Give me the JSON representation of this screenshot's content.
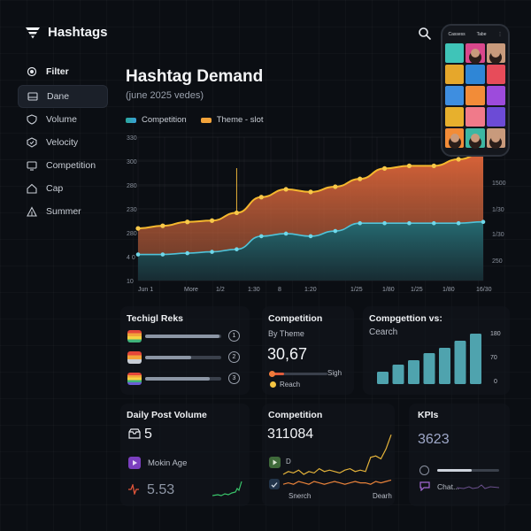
{
  "app": {
    "title": "Hashtags"
  },
  "sidebar": {
    "items": [
      {
        "label": "Filter",
        "icon": "filter-circle-icon",
        "head": true
      },
      {
        "label": "Dane",
        "icon": "window-icon",
        "active": true
      },
      {
        "label": "Volume",
        "icon": "shield-icon"
      },
      {
        "label": "Velocity",
        "icon": "badge-icon"
      },
      {
        "label": "Competition",
        "icon": "monitor-icon"
      },
      {
        "label": "Cap",
        "icon": "home-icon"
      },
      {
        "label": "Summer",
        "icon": "tent-icon"
      }
    ]
  },
  "main": {
    "title": "Hashtag Demand",
    "subtitle": "(june 2025 vedes)",
    "legend": [
      {
        "label": "Competition",
        "color": "#2aa79b"
      },
      {
        "label": "Theme - slot",
        "color": "#f2a33a"
      }
    ]
  },
  "chart_data": {
    "type": "area",
    "x_labels": [
      "Jun 1",
      "More",
      "1/2",
      "1:30",
      "8",
      "1:20",
      "1/25",
      "1/80",
      "1/25",
      "1/80",
      "16/30"
    ],
    "y_labels_left": [
      "330",
      "300",
      "280",
      "230",
      "280",
      "4 0",
      "10"
    ],
    "y_labels_right": [
      "1500",
      "1/30",
      "1/30",
      "250"
    ],
    "series": [
      {
        "name": "Theme - slot",
        "color": "#f5b82e",
        "values": [
          40,
          42,
          45,
          46,
          52,
          64,
          70,
          68,
          72,
          78,
          86,
          88,
          88,
          93,
          98
        ]
      },
      {
        "name": "Competition",
        "color": "#4fc3d9",
        "values": [
          20,
          20,
          21,
          22,
          24,
          34,
          36,
          34,
          38,
          44,
          44,
          44,
          44,
          44,
          45
        ]
      }
    ],
    "spike_index": 4
  },
  "phone": {
    "tabs": [
      "Cassess",
      "Tabe",
      "⋮"
    ],
    "tiles": [
      "#3fc4b8",
      "#d9478c",
      "#c89a7c",
      "#e6a72b",
      "#2f86d6",
      "#e74c5a",
      "#3e8ee0",
      "#f28c38",
      "#9d4bdc",
      "#e7b02d",
      "#f07a8a",
      "#6c4bd6",
      "#f28c38",
      "#3cb6a3",
      "#c89a7c"
    ]
  },
  "cards": {
    "rank": {
      "title": "Techigl Reks",
      "rows": [
        {
          "rank": "1",
          "fill": 0.98
        },
        {
          "rank": "2",
          "fill": 0.6
        },
        {
          "rank": "3",
          "fill": 0.85
        }
      ]
    },
    "competition_theme": {
      "title": "Competition",
      "subtitle": "By Theme",
      "value": "30,67",
      "signal_label": "Sigh",
      "legend_label": "Reach",
      "progress": 0.25
    },
    "comp_search": {
      "title": "Compgettion vs:",
      "subtitle": "Cearch",
      "bars": [
        14,
        22,
        27,
        35,
        41,
        49,
        57
      ],
      "axis": [
        "180",
        "70",
        "0"
      ]
    },
    "daily": {
      "title": "Daily Post Volume",
      "count": "5",
      "metric_label": "Mokin Age",
      "metric_value": "5.53"
    },
    "competition_line": {
      "title": "Competition",
      "value": "311084",
      "x_start": "Snerch",
      "x_end": "Dearh",
      "marker": "D",
      "values_gold": [
        10,
        12,
        11,
        13,
        10,
        12,
        11,
        14,
        12,
        13,
        12,
        11,
        13,
        14,
        12,
        13,
        12,
        22,
        23,
        21,
        28,
        38
      ],
      "values_orange": [
        3,
        4,
        3,
        5,
        4,
        3,
        5,
        4,
        3,
        4,
        5,
        4,
        3,
        4,
        5,
        4,
        4,
        3,
        5,
        4,
        5,
        6
      ]
    },
    "kpis": {
      "title": "KPIs",
      "value": "3623",
      "chat_label": "Chat...",
      "progress": 0.55
    }
  }
}
